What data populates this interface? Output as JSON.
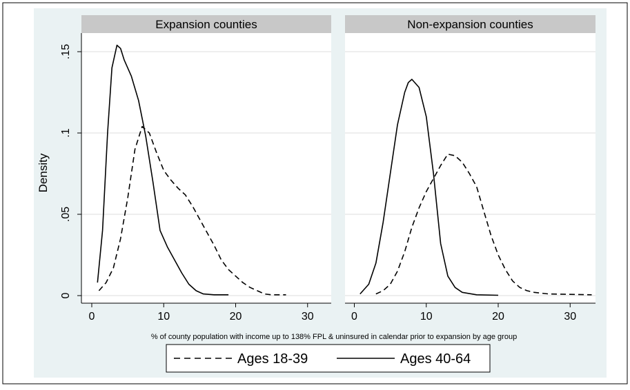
{
  "chart_data": {
    "type": "line",
    "ylabel": "Density",
    "xlabel": "% of county population with income up to 138% FPL & uninsured in calendar prior to expansion by age group",
    "xlim": [
      0,
      33
    ],
    "ylim": [
      0,
      0.16
    ],
    "xticks": [
      0,
      10,
      20,
      30
    ],
    "xtick_labels": [
      "0",
      "10",
      "20",
      "30"
    ],
    "yticks": [
      0,
      0.05,
      0.1,
      0.15
    ],
    "ytick_labels": [
      "0",
      ".05",
      ".1",
      ".15"
    ],
    "grid": true,
    "legend_position": "bottom",
    "legend": [
      {
        "label": "Ages 18-39",
        "style": "dashed"
      },
      {
        "label": "Ages 40-64",
        "style": "solid"
      }
    ],
    "panels": [
      {
        "title": "Expansion counties",
        "series": [
          {
            "name": "Ages 18-39",
            "style": "dashed",
            "points": [
              [
                1,
                0.003
              ],
              [
                2,
                0.008
              ],
              [
                3,
                0.017
              ],
              [
                4,
                0.035
              ],
              [
                5,
                0.06
              ],
              [
                6,
                0.09
              ],
              [
                7,
                0.104
              ],
              [
                8,
                0.1
              ],
              [
                9,
                0.088
              ],
              [
                10,
                0.077
              ],
              [
                11,
                0.071
              ],
              [
                12,
                0.066
              ],
              [
                13,
                0.062
              ],
              [
                14,
                0.055
              ],
              [
                15,
                0.047
              ],
              [
                16,
                0.039
              ],
              [
                17,
                0.031
              ],
              [
                18,
                0.022
              ],
              [
                19,
                0.016
              ],
              [
                20,
                0.012
              ],
              [
                21,
                0.008
              ],
              [
                22,
                0.005
              ],
              [
                23,
                0.003
              ],
              [
                24,
                0.001
              ],
              [
                25,
                0.0005
              ],
              [
                27,
                0.0005
              ]
            ]
          },
          {
            "name": "Ages 40-64",
            "style": "solid",
            "points": [
              [
                0.8,
                0.008
              ],
              [
                1.5,
                0.04
              ],
              [
                2.2,
                0.1
              ],
              [
                2.8,
                0.14
              ],
              [
                3.5,
                0.154
              ],
              [
                4,
                0.152
              ],
              [
                4.5,
                0.145
              ],
              [
                5.5,
                0.135
              ],
              [
                6.5,
                0.12
              ],
              [
                7.5,
                0.098
              ],
              [
                8.5,
                0.07
              ],
              [
                9.5,
                0.04
              ],
              [
                10.5,
                0.03
              ],
              [
                11.5,
                0.022
              ],
              [
                12.5,
                0.014
              ],
              [
                13.5,
                0.007
              ],
              [
                14.5,
                0.003
              ],
              [
                15.5,
                0.001
              ],
              [
                17,
                0.0005
              ],
              [
                19,
                0.0005
              ]
            ]
          }
        ]
      },
      {
        "title": "Non-expansion counties",
        "series": [
          {
            "name": "Ages 18-39",
            "style": "dashed",
            "points": [
              [
                3,
                0.001
              ],
              [
                4,
                0.003
              ],
              [
                5,
                0.007
              ],
              [
                6,
                0.015
              ],
              [
                7,
                0.027
              ],
              [
                8,
                0.042
              ],
              [
                9,
                0.054
              ],
              [
                10,
                0.064
              ],
              [
                11,
                0.072
              ],
              [
                12,
                0.08
              ],
              [
                13,
                0.087
              ],
              [
                14,
                0.086
              ],
              [
                15,
                0.082
              ],
              [
                16,
                0.075
              ],
              [
                17,
                0.067
              ],
              [
                18,
                0.052
              ],
              [
                19,
                0.037
              ],
              [
                20,
                0.025
              ],
              [
                21,
                0.016
              ],
              [
                22,
                0.009
              ],
              [
                23,
                0.005
              ],
              [
                24,
                0.003
              ],
              [
                25,
                0.002
              ],
              [
                27,
                0.001
              ],
              [
                33,
                0.0005
              ]
            ]
          },
          {
            "name": "Ages 40-64",
            "style": "solid",
            "points": [
              [
                0.8,
                0.001
              ],
              [
                2,
                0.007
              ],
              [
                3,
                0.02
              ],
              [
                4,
                0.045
              ],
              [
                5,
                0.075
              ],
              [
                6,
                0.105
              ],
              [
                7,
                0.125
              ],
              [
                7.5,
                0.131
              ],
              [
                8,
                0.133
              ],
              [
                9,
                0.128
              ],
              [
                10,
                0.11
              ],
              [
                11,
                0.075
              ],
              [
                12,
                0.032
              ],
              [
                13,
                0.012
              ],
              [
                14,
                0.005
              ],
              [
                15,
                0.002
              ],
              [
                17,
                0.0005
              ],
              [
                20,
                0.0002
              ]
            ]
          }
        ]
      }
    ]
  },
  "colors": {
    "panel_header_bg": "#c8c8c8",
    "plot_bg": "#ffffff",
    "grid": "#dcdcdc",
    "line": "#000000",
    "frame": "#000000"
  }
}
